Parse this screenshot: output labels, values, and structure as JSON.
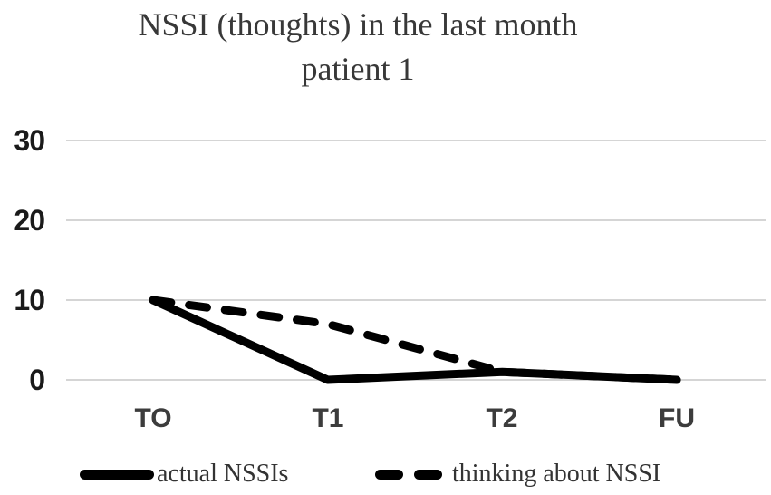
{
  "title": {
    "line1": "NSSI (thoughts) in the last month",
    "line2": "patient 1"
  },
  "y_axis": {
    "tick_labels": [
      "30",
      "20",
      "10",
      "0"
    ]
  },
  "x_axis": {
    "tick_labels": [
      "TO",
      "T1",
      "T2",
      "FU"
    ]
  },
  "legend": {
    "items": [
      {
        "label": "actual NSSIs",
        "style": "solid"
      },
      {
        "label": "thinking about NSSI",
        "style": "dashed"
      }
    ]
  },
  "colors": {
    "line": "#000000",
    "grid": "#c7c7c7",
    "title_text": "#383838",
    "axis_text": "#1a1a1a",
    "x_axis_text": "#3c3c3c",
    "legend_text": "#333333"
  },
  "chart_data": {
    "type": "line",
    "title": "NSSI (thoughts) in the last month patient 1",
    "categories": [
      "TO",
      "T1",
      "T2",
      "FU"
    ],
    "series": [
      {
        "name": "actual NSSIs",
        "dash": "solid",
        "values": [
          10,
          0,
          1,
          0
        ]
      },
      {
        "name": "thinking about NSSI",
        "dash": "dashed",
        "values": [
          10,
          7,
          1,
          0
        ]
      }
    ],
    "xlabel": "",
    "ylabel": "",
    "ylim": [
      0,
      30
    ],
    "y_ticks": [
      0,
      10,
      20,
      30
    ],
    "grid": true,
    "legend_position": "bottom"
  }
}
